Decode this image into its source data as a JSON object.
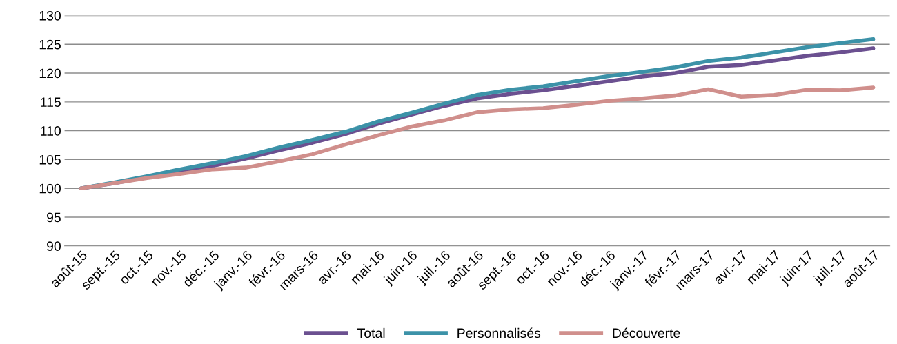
{
  "chart_data": {
    "type": "line",
    "categories": [
      "août-15",
      "sept.-15",
      "oct.-15",
      "nov.-15",
      "déc.-15",
      "janv.-16",
      "févr.-16",
      "mars-16",
      "avr.-16",
      "mai-16",
      "juin-16",
      "juil.-16",
      "août-16",
      "sept.-16",
      "oct.-16",
      "nov.-16",
      "déc.-16",
      "janv.-17",
      "févr.-17",
      "mars-17",
      "avr.-17",
      "mai-17",
      "juin-17",
      "juil.-17",
      "août-17"
    ],
    "series": [
      {
        "name": "Total",
        "color": "#6b5090",
        "values": [
          100,
          100.9,
          101.9,
          102.9,
          103.9,
          105.2,
          106.6,
          107.9,
          109.4,
          111.2,
          112.8,
          114.3,
          115.6,
          116.4,
          117.0,
          117.8,
          118.6,
          119.4,
          120.0,
          121.1,
          121.4,
          122.2,
          123.0,
          123.6,
          124.3
        ]
      },
      {
        "name": "Personnalisés",
        "color": "#3c92a8",
        "values": [
          100,
          101.0,
          102.1,
          103.3,
          104.4,
          105.6,
          107.1,
          108.4,
          109.8,
          111.6,
          113.1,
          114.7,
          116.2,
          117.1,
          117.7,
          118.6,
          119.5,
          120.2,
          121.0,
          122.1,
          122.7,
          123.6,
          124.5,
          125.2,
          125.9
        ]
      },
      {
        "name": "Découverte",
        "color": "#d08f8c",
        "values": [
          100,
          100.9,
          101.8,
          102.5,
          103.3,
          103.6,
          104.7,
          105.9,
          107.6,
          109.2,
          110.7,
          111.8,
          113.2,
          113.7,
          113.9,
          114.5,
          115.2,
          115.6,
          116.1,
          117.2,
          115.9,
          116.2,
          117.1,
          117.0,
          117.5
        ]
      }
    ],
    "ylim": [
      90,
      130
    ],
    "yticks": [
      90,
      95,
      100,
      105,
      110,
      115,
      120,
      125,
      130
    ],
    "grid": "y",
    "legend": "bottom",
    "marker": "none",
    "line_style": "solid"
  }
}
